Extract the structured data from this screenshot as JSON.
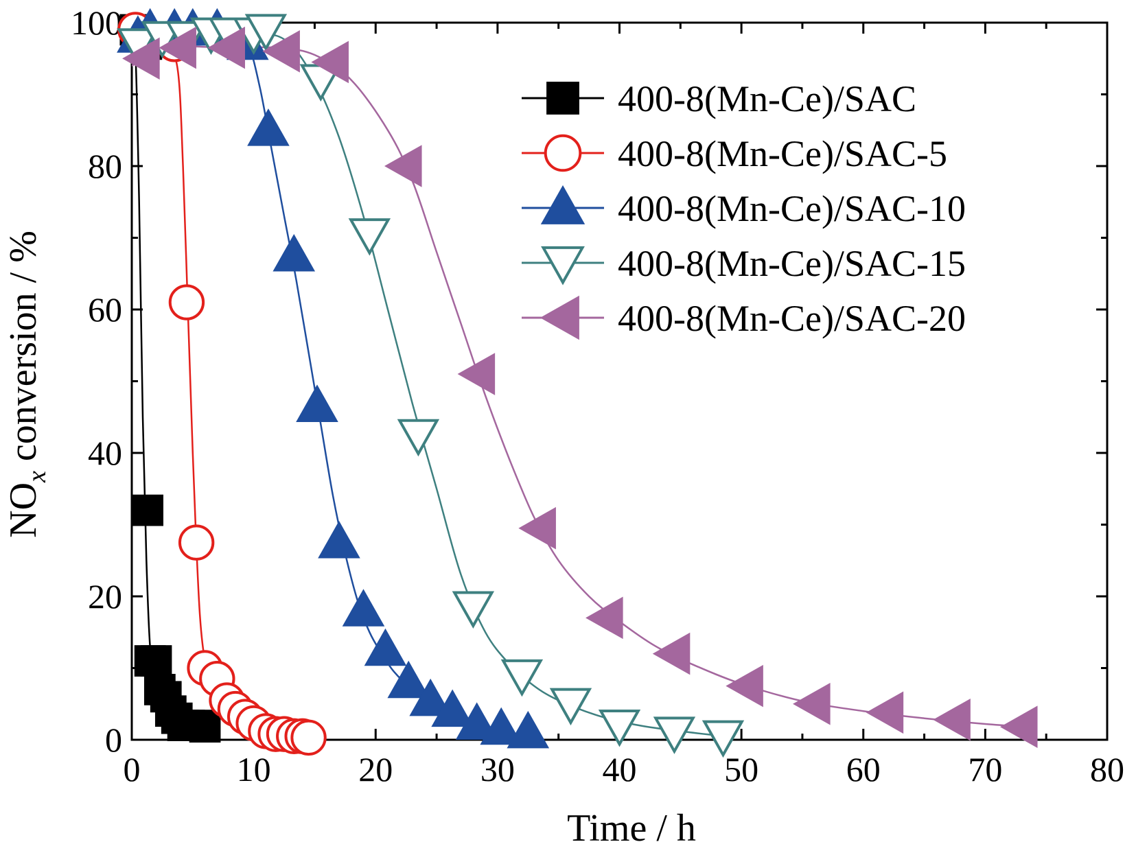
{
  "chart_data": {
    "type": "line",
    "xlabel": "Time / h",
    "ylabel_main": "NO",
    "ylabel_sub": "x",
    "ylabel_rest": " conversion / %",
    "xlim": [
      0,
      80
    ],
    "ylim": [
      0,
      100
    ],
    "xticks": [
      0,
      10,
      20,
      30,
      40,
      50,
      60,
      70,
      80
    ],
    "yticks": [
      0,
      20,
      40,
      60,
      80,
      100
    ],
    "grid": false,
    "legend_position": "top-right",
    "series": [
      {
        "name": "400-8(Mn-Ce)/SAC",
        "color": "#000000",
        "marker": "square",
        "points": [
          [
            0.3,
            99
          ],
          [
            1.2,
            97
          ],
          [
            1.3,
            32
          ],
          [
            1.5,
            11
          ],
          [
            2.0,
            11
          ],
          [
            2.3,
            7
          ],
          [
            2.8,
            6
          ],
          [
            3.2,
            4
          ],
          [
            3.7,
            3
          ],
          [
            4.2,
            2
          ],
          [
            4.7,
            2
          ],
          [
            5.5,
            2
          ],
          [
            6.0,
            1.8
          ]
        ],
        "curve": [
          [
            0,
            100
          ],
          [
            0.3,
            96
          ],
          [
            0.6,
            75
          ],
          [
            0.9,
            45
          ],
          [
            1.2,
            25
          ],
          [
            1.5,
            13
          ],
          [
            2.0,
            6
          ],
          [
            2.5,
            3.5
          ],
          [
            3.0,
            2
          ],
          [
            3.5,
            1.2
          ],
          [
            4.0,
            0.6
          ],
          [
            4.5,
            0.3
          ],
          [
            5.0,
            0.1
          ],
          [
            6.0,
            0
          ]
        ]
      },
      {
        "name": "400-8(Mn-Ce)/SAC-5",
        "color": "#e3201b",
        "marker": "circle-open",
        "points": [
          [
            0.3,
            99
          ],
          [
            3.5,
            97
          ],
          [
            4.5,
            61
          ],
          [
            5.3,
            27.5
          ],
          [
            6.0,
            10
          ],
          [
            7.0,
            8.5
          ],
          [
            7.8,
            5.5
          ],
          [
            8.5,
            4.3
          ],
          [
            9.3,
            3.2
          ],
          [
            10.0,
            2.3
          ],
          [
            11.0,
            1.2
          ],
          [
            11.8,
            0.8
          ],
          [
            12.5,
            0.8
          ],
          [
            13.3,
            0.5
          ],
          [
            14.0,
            0.5
          ],
          [
            14.5,
            0.3
          ]
        ],
        "curve": [
          [
            0,
            100
          ],
          [
            2.0,
            98
          ],
          [
            3.0,
            97
          ],
          [
            3.8,
            93
          ],
          [
            4.2,
            80
          ],
          [
            4.6,
            60
          ],
          [
            5.0,
            40
          ],
          [
            5.3,
            27
          ],
          [
            5.6,
            17
          ],
          [
            6.0,
            11
          ],
          [
            6.5,
            8.5
          ],
          [
            7.0,
            7
          ],
          [
            8.0,
            5
          ],
          [
            9.0,
            3.5
          ],
          [
            10.0,
            2.3
          ],
          [
            11.0,
            1.5
          ],
          [
            12.0,
            1
          ],
          [
            13.0,
            0.6
          ],
          [
            14.5,
            0.3
          ]
        ]
      },
      {
        "name": "400-8(Mn-Ce)/SAC-10",
        "color": "#1f4e9e",
        "marker": "triangle-up",
        "points": [
          [
            0.5,
            98
          ],
          [
            1.5,
            99
          ],
          [
            3.5,
            99
          ],
          [
            5.0,
            99
          ],
          [
            7.0,
            99
          ],
          [
            9.5,
            97
          ],
          [
            11.2,
            85
          ],
          [
            13.3,
            67.5
          ],
          [
            15.2,
            46.5
          ],
          [
            17.0,
            27.5
          ],
          [
            19.0,
            18
          ],
          [
            20.8,
            12.5
          ],
          [
            22.7,
            8
          ],
          [
            24.5,
            5.5
          ],
          [
            26.3,
            4
          ],
          [
            28.3,
            2.2
          ],
          [
            30.3,
            1.5
          ],
          [
            32.5,
            1
          ]
        ],
        "curve": [
          [
            0,
            96
          ],
          [
            2,
            98
          ],
          [
            5,
            99
          ],
          [
            8,
            98.5
          ],
          [
            9.5,
            97
          ],
          [
            10.5,
            91
          ],
          [
            11.5,
            82
          ],
          [
            12.5,
            73
          ],
          [
            13.5,
            64
          ],
          [
            14.5,
            54
          ],
          [
            15.5,
            44
          ],
          [
            16.5,
            34
          ],
          [
            17.5,
            26
          ],
          [
            18.5,
            19.5
          ],
          [
            19.5,
            15
          ],
          [
            20.5,
            12
          ],
          [
            21.5,
            9.5
          ],
          [
            23,
            7
          ],
          [
            25,
            4.5
          ],
          [
            27,
            2.8
          ],
          [
            29,
            1.5
          ],
          [
            31,
            0.5
          ],
          [
            32.5,
            0
          ]
        ]
      },
      {
        "name": "400-8(Mn-Ce)/SAC-15",
        "color": "#3e8080",
        "marker": "triangle-down-open",
        "points": [
          [
            0.5,
            97
          ],
          [
            2.5,
            98
          ],
          [
            4.5,
            98
          ],
          [
            6.5,
            98.5
          ],
          [
            8.0,
            98.5
          ],
          [
            10.0,
            98.5
          ],
          [
            11.0,
            99
          ],
          [
            15.5,
            92
          ],
          [
            19.5,
            70.5
          ],
          [
            23.5,
            42.5
          ],
          [
            28.0,
            18.5
          ],
          [
            32.0,
            9
          ],
          [
            36.0,
            5
          ],
          [
            40.0,
            2
          ],
          [
            44.5,
            1
          ],
          [
            48.5,
            0.5
          ]
        ],
        "curve": [
          [
            0,
            97
          ],
          [
            4,
            98
          ],
          [
            8,
            98.5
          ],
          [
            11,
            98.5
          ],
          [
            13,
            97
          ],
          [
            15,
            92
          ],
          [
            17,
            84
          ],
          [
            19,
            73
          ],
          [
            21,
            60
          ],
          [
            23,
            47
          ],
          [
            25,
            35
          ],
          [
            27,
            23
          ],
          [
            29,
            15
          ],
          [
            31,
            10.5
          ],
          [
            33,
            7.5
          ],
          [
            35,
            5.5
          ],
          [
            38,
            3.5
          ],
          [
            41,
            2.2
          ],
          [
            44,
            1.4
          ],
          [
            48.5,
            0.5
          ]
        ]
      },
      {
        "name": "400-8(Mn-Ce)/SAC-20",
        "color": "#a4679e",
        "marker": "triangle-left",
        "points": [
          [
            1.0,
            95
          ],
          [
            4.0,
            96.5
          ],
          [
            8.0,
            96.5
          ],
          [
            12.5,
            96
          ],
          [
            16.5,
            94.5
          ],
          [
            22.5,
            80
          ],
          [
            28.5,
            51
          ],
          [
            33.5,
            29.5
          ],
          [
            39.0,
            17
          ],
          [
            44.5,
            12
          ],
          [
            50.5,
            7.5
          ],
          [
            56.0,
            5
          ],
          [
            62.0,
            3.8
          ],
          [
            67.5,
            2.8
          ],
          [
            73.0,
            1.8
          ]
        ],
        "curve": [
          [
            0,
            94
          ],
          [
            3,
            96.5
          ],
          [
            8,
            96.5
          ],
          [
            12,
            96.5
          ],
          [
            15,
            95.5
          ],
          [
            18,
            92
          ],
          [
            21,
            85
          ],
          [
            23,
            78
          ],
          [
            25,
            68
          ],
          [
            27,
            58
          ],
          [
            29,
            48
          ],
          [
            31,
            39
          ],
          [
            33,
            31
          ],
          [
            35,
            25
          ],
          [
            37.5,
            20
          ],
          [
            40,
            16.5
          ],
          [
            43,
            13
          ],
          [
            46,
            10.5
          ],
          [
            50,
            7.8
          ],
          [
            55,
            5.4
          ],
          [
            60,
            4
          ],
          [
            65,
            3
          ],
          [
            70,
            2.2
          ],
          [
            73.5,
            1.8
          ]
        ]
      }
    ]
  }
}
